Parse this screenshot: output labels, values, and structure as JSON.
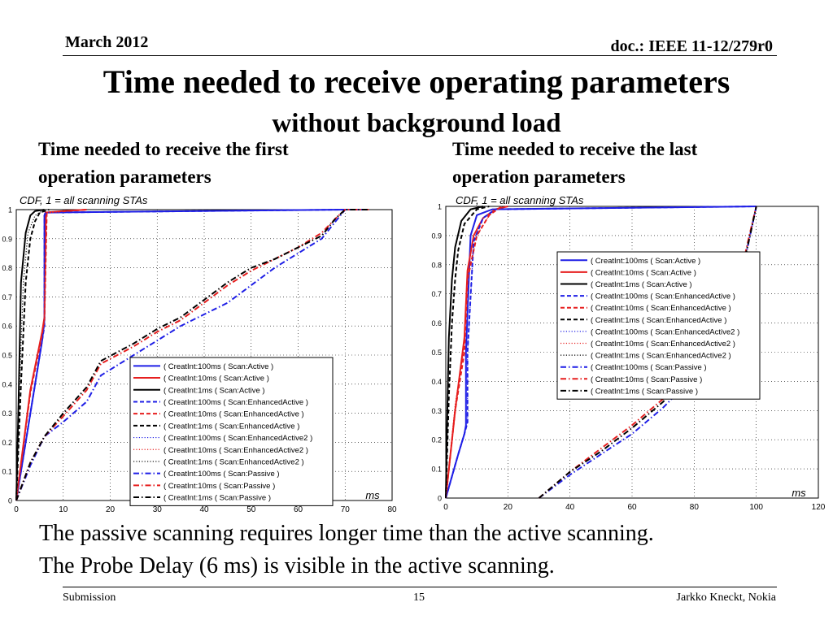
{
  "header": {
    "date": "March 2012",
    "doc": "doc.: IEEE 11-12/279r0"
  },
  "title": {
    "line1": "Time needed to receive operating parameters",
    "line2": "without background load"
  },
  "subtitles": {
    "left_line1": "Time needed to receive the first",
    "left_line2": "operation parameters",
    "right_line1": "Time needed to receive the last",
    "right_line2": "operation parameters"
  },
  "body": {
    "line1": "The passive scanning requires longer time than the active scanning.",
    "line2": "The Probe Delay (6 ms) is visible in the active scanning."
  },
  "footer": {
    "left": "Submission",
    "center": "15",
    "right": "Jarkko Kneckt, Nokia"
  },
  "colors": {
    "blue": "#1f1fe6",
    "red": "#e61f1f",
    "black": "#000000"
  },
  "chart_data": [
    {
      "type": "line",
      "title": "CDF, 1 = all scanning STAs",
      "xlabel": "ms",
      "xlim": [
        0,
        80
      ],
      "ylim": [
        0,
        1
      ],
      "xticks": [
        0,
        10,
        20,
        30,
        40,
        50,
        60,
        70,
        80
      ],
      "yticks": [
        0,
        0.1,
        0.2,
        0.3,
        0.4,
        0.5,
        0.6,
        0.7,
        0.8,
        0.9,
        1
      ],
      "grid": true,
      "legend_position": "bottom-right",
      "series": [
        {
          "name": "( CreatInt:100ms ( Scan:Active )",
          "color": "blue",
          "dash": "solid",
          "x": [
            0,
            5.5,
            6,
            6,
            6.2,
            70
          ],
          "y": [
            0,
            0.55,
            0.62,
            0.98,
            0.99,
            1
          ]
        },
        {
          "name": "( CreatInt:10ms ( Scan:Active )",
          "color": "red",
          "dash": "solid",
          "x": [
            0,
            3,
            5.5,
            6,
            6.3,
            10,
            15
          ],
          "y": [
            0,
            0.38,
            0.58,
            0.63,
            0.99,
            0.995,
            1
          ]
        },
        {
          "name": "( CreatInt:1ms ( Scan:Active )",
          "color": "black",
          "dash": "solid",
          "x": [
            0,
            0.5,
            1,
            2,
            3,
            4,
            6
          ],
          "y": [
            0,
            0.35,
            0.75,
            0.92,
            0.98,
            0.995,
            1
          ]
        },
        {
          "name": "( CreatInt:100ms ( Scan:EnhancedActive )",
          "color": "blue",
          "dash": "dash",
          "x": [
            0,
            5.5,
            6,
            6,
            6.5,
            70
          ],
          "y": [
            0,
            0.55,
            0.6,
            0.98,
            0.99,
            1
          ]
        },
        {
          "name": "( CreatInt:10ms ( Scan:EnhancedActive )",
          "color": "red",
          "dash": "dash",
          "x": [
            0,
            3,
            5.5,
            6,
            6.5,
            15
          ],
          "y": [
            0,
            0.37,
            0.57,
            0.62,
            0.99,
            1
          ]
        },
        {
          "name": "( CreatInt:1ms ( Scan:EnhancedActive )",
          "color": "black",
          "dash": "dash",
          "x": [
            0,
            1,
            2,
            3,
            4,
            5,
            7
          ],
          "y": [
            0,
            0.4,
            0.75,
            0.9,
            0.96,
            0.99,
            1
          ]
        },
        {
          "name": "( CreatInt:100ms ( Scan:EnhancedActive2 )",
          "color": "blue",
          "dash": "dot",
          "x": [
            0,
            5.5,
            6,
            6,
            6.5,
            70
          ],
          "y": [
            0,
            0.55,
            0.6,
            0.98,
            0.99,
            1
          ]
        },
        {
          "name": "( CreatInt:10ms ( Scan:EnhancedActive2 )",
          "color": "red",
          "dash": "dot",
          "x": [
            0,
            3,
            5.5,
            6,
            6.5,
            15
          ],
          "y": [
            0,
            0.38,
            0.58,
            0.62,
            0.99,
            1
          ]
        },
        {
          "name": "( CreatInt:1ms ( Scan:EnhancedActive2 )",
          "color": "black",
          "dash": "dot",
          "x": [
            0,
            0.7,
            1.5,
            2.5,
            4,
            6
          ],
          "y": [
            0,
            0.4,
            0.75,
            0.92,
            0.98,
            1
          ]
        },
        {
          "name": "( CreatInt:100ms ( Scan:Passive )",
          "color": "blue",
          "dash": "dashdot",
          "x": [
            0,
            3,
            6,
            10,
            15,
            18,
            25,
            30,
            35,
            40,
            45,
            50,
            55,
            60,
            65,
            68,
            70,
            75
          ],
          "y": [
            0,
            0.12,
            0.22,
            0.27,
            0.34,
            0.43,
            0.5,
            0.55,
            0.6,
            0.64,
            0.68,
            0.74,
            0.8,
            0.85,
            0.9,
            0.96,
            1,
            1
          ]
        },
        {
          "name": "( CreatInt:10ms ( Scan:Passive )",
          "color": "red",
          "dash": "dashdot",
          "x": [
            0,
            3,
            6,
            10,
            15,
            18,
            25,
            30,
            35,
            40,
            45,
            50,
            55,
            60,
            65,
            68,
            70,
            75
          ],
          "y": [
            0,
            0.13,
            0.22,
            0.29,
            0.38,
            0.47,
            0.53,
            0.58,
            0.62,
            0.68,
            0.74,
            0.79,
            0.83,
            0.87,
            0.92,
            0.97,
            1,
            1
          ]
        },
        {
          "name": "( CreatInt:1ms ( Scan:Passive )",
          "color": "black",
          "dash": "dashdot",
          "x": [
            0,
            3,
            6,
            10,
            15,
            18,
            25,
            30,
            35,
            40,
            45,
            50,
            55,
            60,
            65,
            68,
            70,
            75
          ],
          "y": [
            0,
            0.13,
            0.22,
            0.3,
            0.39,
            0.48,
            0.54,
            0.59,
            0.63,
            0.69,
            0.75,
            0.8,
            0.83,
            0.87,
            0.91,
            0.97,
            1,
            1
          ]
        }
      ]
    },
    {
      "type": "line",
      "title": "CDF, 1 = all scanning STAs",
      "xlabel": "ms",
      "xlim": [
        0,
        120
      ],
      "ylim": [
        0,
        1
      ],
      "xticks": [
        0,
        20,
        40,
        60,
        80,
        100,
        120
      ],
      "yticks": [
        0,
        0.1,
        0.2,
        0.3,
        0.4,
        0.5,
        0.6,
        0.7,
        0.8,
        0.9,
        1
      ],
      "grid": true,
      "legend_position": "top-right",
      "series": [
        {
          "name": "( CreatInt:100ms ( Scan:Active )",
          "color": "blue",
          "dash": "solid",
          "x": [
            0,
            4,
            6,
            6.5,
            6.5,
            8,
            10,
            15,
            100
          ],
          "y": [
            0,
            0.15,
            0.22,
            0.25,
            0.5,
            0.9,
            0.97,
            0.99,
            1
          ]
        },
        {
          "name": "( CreatInt:10ms ( Scan:Active )",
          "color": "red",
          "dash": "solid",
          "x": [
            0,
            3,
            6,
            7,
            9,
            12,
            16,
            20
          ],
          "y": [
            0,
            0.3,
            0.55,
            0.78,
            0.9,
            0.96,
            0.99,
            1
          ]
        },
        {
          "name": "( CreatInt:1ms ( Scan:Active )",
          "color": "black",
          "dash": "solid",
          "x": [
            0,
            0.5,
            1,
            2,
            3,
            5,
            8,
            12
          ],
          "y": [
            0,
            0.3,
            0.55,
            0.75,
            0.86,
            0.95,
            0.99,
            1
          ]
        },
        {
          "name": "( CreatInt:100ms ( Scan:EnhancedActive )",
          "color": "blue",
          "dash": "dash",
          "x": [
            0,
            4,
            6,
            7,
            7,
            9,
            12,
            16,
            100
          ],
          "y": [
            0,
            0.15,
            0.22,
            0.26,
            0.5,
            0.88,
            0.96,
            0.99,
            1
          ]
        },
        {
          "name": "( CreatInt:10ms ( Scan:EnhancedActive )",
          "color": "red",
          "dash": "dash",
          "x": [
            0,
            3,
            6,
            7,
            10,
            14,
            18
          ],
          "y": [
            0,
            0.3,
            0.5,
            0.75,
            0.9,
            0.97,
            1
          ]
        },
        {
          "name": "( CreatInt:1ms ( Scan:EnhancedActive )",
          "color": "black",
          "dash": "dash",
          "x": [
            0,
            1,
            2,
            3,
            4,
            6,
            10,
            14
          ],
          "y": [
            0,
            0.35,
            0.6,
            0.75,
            0.85,
            0.94,
            0.99,
            1
          ]
        },
        {
          "name": "( CreatInt:100ms ( Scan:EnhancedActive2 )",
          "color": "blue",
          "dash": "dot",
          "x": [
            0,
            4,
            6,
            7,
            7,
            9,
            12,
            16,
            100
          ],
          "y": [
            0,
            0.15,
            0.22,
            0.26,
            0.5,
            0.88,
            0.96,
            0.99,
            1
          ]
        },
        {
          "name": "( CreatInt:10ms ( Scan:EnhancedActive2 )",
          "color": "red",
          "dash": "dot",
          "x": [
            0,
            3,
            6,
            7,
            10,
            14,
            18
          ],
          "y": [
            0,
            0.32,
            0.52,
            0.76,
            0.9,
            0.97,
            1
          ]
        },
        {
          "name": "( CreatInt:1ms ( Scan:EnhancedActive2 )",
          "color": "black",
          "dash": "dot",
          "x": [
            0,
            0.5,
            1,
            2,
            3,
            5,
            8,
            12
          ],
          "y": [
            0,
            0.3,
            0.55,
            0.75,
            0.86,
            0.95,
            0.99,
            1
          ]
        },
        {
          "name": "( CreatInt:100ms ( Scan:Passive )",
          "color": "blue",
          "dash": "dashdot",
          "x": [
            30,
            40,
            50,
            60,
            70,
            80,
            90,
            95,
            98,
            100
          ],
          "y": [
            0,
            0.08,
            0.15,
            0.22,
            0.31,
            0.42,
            0.55,
            0.75,
            0.9,
            1
          ]
        },
        {
          "name": "( CreatInt:10ms ( Scan:Passive )",
          "color": "red",
          "dash": "dashdot",
          "x": [
            30,
            40,
            50,
            60,
            70,
            80,
            90,
            95,
            98,
            100
          ],
          "y": [
            0,
            0.09,
            0.17,
            0.25,
            0.34,
            0.45,
            0.57,
            0.77,
            0.91,
            1
          ]
        },
        {
          "name": "( CreatInt:1ms ( Scan:Passive )",
          "color": "black",
          "dash": "dashdot",
          "x": [
            30,
            40,
            50,
            60,
            70,
            80,
            90,
            95,
            98,
            100
          ],
          "y": [
            0,
            0.09,
            0.16,
            0.24,
            0.33,
            0.44,
            0.56,
            0.76,
            0.9,
            1
          ]
        }
      ]
    }
  ]
}
